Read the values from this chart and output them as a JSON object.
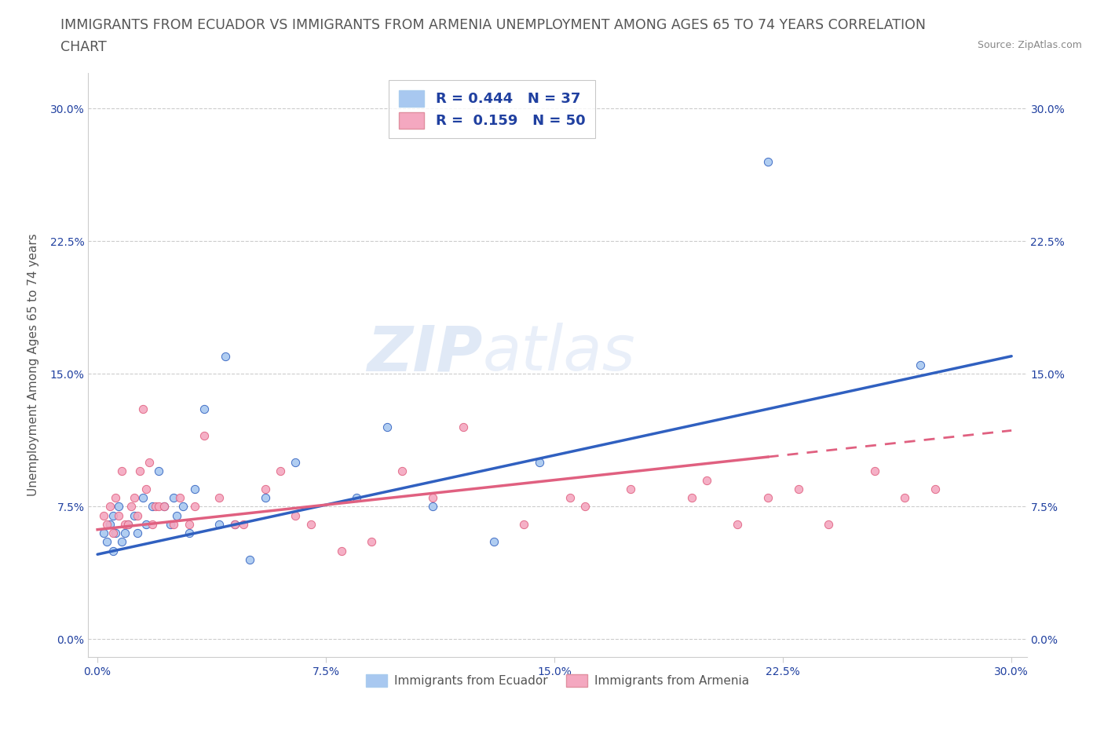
{
  "title_line1": "IMMIGRANTS FROM ECUADOR VS IMMIGRANTS FROM ARMENIA UNEMPLOYMENT AMONG AGES 65 TO 74 YEARS CORRELATION",
  "title_line2": "CHART",
  "source": "Source: ZipAtlas.com",
  "xlabel_ticks": [
    "0.0%",
    "7.5%",
    "15.0%",
    "22.5%",
    "30.0%"
  ],
  "ylabel_ticks": [
    "0.0%",
    "7.5%",
    "15.0%",
    "22.5%",
    "30.0%"
  ],
  "xlim": [
    -0.003,
    0.305
  ],
  "ylim": [
    -0.01,
    0.32
  ],
  "ylabel": "Unemployment Among Ages 65 to 74 years",
  "legend1_label": "R = 0.444   N = 37",
  "legend2_label": "R =  0.159   N = 50",
  "legend1_color": "#a8c8f0",
  "legend2_color": "#f4a8c0",
  "scatter_color_ecuador": "#a8c8f0",
  "scatter_color_armenia": "#f4a8c0",
  "line_color_ecuador": "#3060c0",
  "line_color_armenia": "#e06080",
  "watermark": "ZIPatlas",
  "ecuador_x": [
    0.002,
    0.003,
    0.004,
    0.005,
    0.005,
    0.006,
    0.007,
    0.008,
    0.009,
    0.01,
    0.012,
    0.013,
    0.015,
    0.016,
    0.018,
    0.02,
    0.022,
    0.024,
    0.025,
    0.026,
    0.028,
    0.03,
    0.032,
    0.035,
    0.04,
    0.042,
    0.045,
    0.05,
    0.055,
    0.065,
    0.085,
    0.095,
    0.11,
    0.13,
    0.145,
    0.22,
    0.27
  ],
  "ecuador_y": [
    0.06,
    0.055,
    0.065,
    0.05,
    0.07,
    0.06,
    0.075,
    0.055,
    0.06,
    0.065,
    0.07,
    0.06,
    0.08,
    0.065,
    0.075,
    0.095,
    0.075,
    0.065,
    0.08,
    0.07,
    0.075,
    0.06,
    0.085,
    0.13,
    0.065,
    0.16,
    0.065,
    0.045,
    0.08,
    0.1,
    0.08,
    0.12,
    0.075,
    0.055,
    0.1,
    0.27,
    0.155
  ],
  "armenia_x": [
    0.002,
    0.003,
    0.004,
    0.005,
    0.006,
    0.007,
    0.008,
    0.009,
    0.01,
    0.011,
    0.012,
    0.013,
    0.014,
    0.015,
    0.016,
    0.017,
    0.018,
    0.019,
    0.02,
    0.022,
    0.025,
    0.027,
    0.03,
    0.032,
    0.035,
    0.04,
    0.045,
    0.048,
    0.055,
    0.06,
    0.065,
    0.07,
    0.08,
    0.09,
    0.1,
    0.11,
    0.12,
    0.14,
    0.155,
    0.16,
    0.175,
    0.195,
    0.2,
    0.21,
    0.22,
    0.23,
    0.24,
    0.255,
    0.265,
    0.275
  ],
  "armenia_y": [
    0.07,
    0.065,
    0.075,
    0.06,
    0.08,
    0.07,
    0.095,
    0.065,
    0.065,
    0.075,
    0.08,
    0.07,
    0.095,
    0.13,
    0.085,
    0.1,
    0.065,
    0.075,
    0.075,
    0.075,
    0.065,
    0.08,
    0.065,
    0.075,
    0.115,
    0.08,
    0.065,
    0.065,
    0.085,
    0.095,
    0.07,
    0.065,
    0.05,
    0.055,
    0.095,
    0.08,
    0.12,
    0.065,
    0.08,
    0.075,
    0.085,
    0.08,
    0.09,
    0.065,
    0.08,
    0.085,
    0.065,
    0.095,
    0.08,
    0.085
  ],
  "grid_color": "#cccccc",
  "background_color": "#ffffff",
  "title_fontsize": 12.5,
  "axis_label_fontsize": 11,
  "tick_fontsize": 10,
  "legend_label_color": "#2040a0",
  "bottom_legend_ecuador": "Immigrants from Ecuador",
  "bottom_legend_armenia": "Immigrants from Armenia",
  "ecuador_line_start_x": 0.0,
  "ecuador_line_start_y": 0.048,
  "ecuador_line_end_x": 0.3,
  "ecuador_line_end_y": 0.16,
  "armenia_line_start_x": 0.0,
  "armenia_line_start_y": 0.062,
  "armenia_line_end_x": 0.3,
  "armenia_line_end_y": 0.118
}
